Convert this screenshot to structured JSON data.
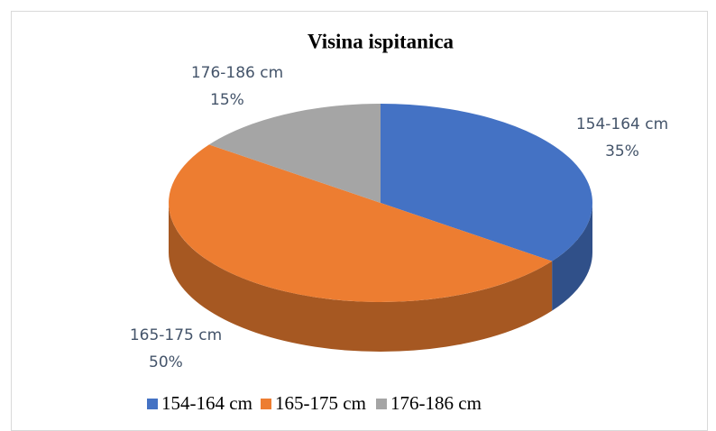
{
  "chart_data": {
    "type": "pie",
    "title": "Visina ispitanica",
    "categories": [
      "154-164 cm",
      "165-175 cm",
      "176-186 cm"
    ],
    "values": [
      35,
      50,
      15
    ],
    "value_labels": [
      "35%",
      "50%",
      "15%"
    ],
    "colors": [
      "#4472c4",
      "#ed7d31",
      "#a5a5a5"
    ],
    "legend": "bottom"
  }
}
